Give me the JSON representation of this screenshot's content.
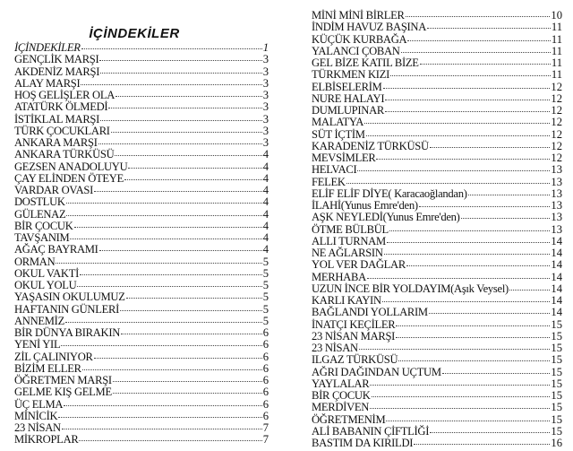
{
  "title": "İÇİNDEKİLER",
  "left_entries": [
    {
      "title": "İÇİNDEKİLER",
      "page": "1",
      "italic": true
    },
    {
      "title": "GENÇLİK MARŞI",
      "page": "3"
    },
    {
      "title": "AKDENİZ MARŞI",
      "page": "3"
    },
    {
      "title": "ALAY MARŞI",
      "page": "3"
    },
    {
      "title": "HOŞ GELİŞLER OLA",
      "page": "3"
    },
    {
      "title": "ATATÜRK ÖLMEDİ",
      "page": "3"
    },
    {
      "title": "İSTİKLAL MARŞI",
      "page": "3"
    },
    {
      "title": "TÜRK ÇOCUKLARI",
      "page": "3"
    },
    {
      "title": "ANKARA MARŞI",
      "page": "3"
    },
    {
      "title": "ANKARA TÜRKÜSÜ",
      "page": "4"
    },
    {
      "title": "GEZSEN ANADOLUYU",
      "page": "4"
    },
    {
      "title": "ÇAY ELİNDEN ÖTEYE",
      "page": "4"
    },
    {
      "title": "VARDAR OVASI",
      "page": "4"
    },
    {
      "title": "DOSTLUK",
      "page": "4"
    },
    {
      "title": "GÜLENAZ",
      "page": "4"
    },
    {
      "title": "BİR ÇOCUK",
      "page": "4"
    },
    {
      "title": "TAVŞANIM",
      "page": "4"
    },
    {
      "title": "AĞAÇ BAYRAMI",
      "page": "4"
    },
    {
      "title": "ORMAN",
      "page": "5"
    },
    {
      "title": "OKUL VAKTİ",
      "page": "5"
    },
    {
      "title": "OKUL YOLU",
      "page": "5"
    },
    {
      "title": "YAŞASIN OKULUMUZ",
      "page": "5"
    },
    {
      "title": "HAFTANIN GÜNLERİ",
      "page": "5"
    },
    {
      "title": "ANNEMİZ",
      "page": "5"
    },
    {
      "title": "BİR DÜNYA BIRAKIN",
      "page": "6"
    },
    {
      "title": "YENİ YIL",
      "page": "6"
    },
    {
      "title": "ZİL ÇALINIYOR",
      "page": "6"
    },
    {
      "title": "BİZİM ELLER",
      "page": "6"
    },
    {
      "title": "ÖĞRETMEN MARŞI",
      "page": "6"
    },
    {
      "title": "GELME KIŞ GELME",
      "page": "6"
    },
    {
      "title": "ÜÇ ELMA",
      "page": "6"
    },
    {
      "title": "MİNİCİK",
      "page": "6"
    },
    {
      "title": "23 NİSAN",
      "page": "7"
    },
    {
      "title": "MİKROPLAR",
      "page": "7"
    }
  ],
  "right_entries": [
    {
      "title": "MİNİ MİNİ BİRLER",
      "page": "10"
    },
    {
      "title": "İNDİM HAVUZ BAŞINA",
      "page": "11"
    },
    {
      "title": "KÜÇÜK KURBAĞA",
      "page": "11"
    },
    {
      "title": "YALANCI ÇOBAN",
      "page": "11"
    },
    {
      "title": "GEL BİZE KATIL BİZE",
      "page": "11"
    },
    {
      "title": "TÜRKMEN KIZI",
      "page": "11"
    },
    {
      "title": "ELBİSELERİM",
      "page": "12"
    },
    {
      "title": "NURE HALAYI",
      "page": "12"
    },
    {
      "title": "DUMLUPINAR",
      "page": "12"
    },
    {
      "title": "MALATYA",
      "page": "12"
    },
    {
      "title": "SÜT İÇTİM",
      "page": "12"
    },
    {
      "title": "KARADENİZ TÜRKÜSÜ",
      "page": "12"
    },
    {
      "title": "MEVSİMLER",
      "page": "12"
    },
    {
      "title": "HELVACI",
      "page": "13"
    },
    {
      "title": "FELEK",
      "page": "13"
    },
    {
      "title": "ELİF ELİF DİYE( Karacaoğlandan)",
      "page": "13"
    },
    {
      "title": "İLAHİ(Yunus Emre'den)",
      "page": "13"
    },
    {
      "title": "AŞK NEYLEDİ(Yunus Emre'den)",
      "page": "13"
    },
    {
      "title": "ÖTME BÜLBÜL",
      "page": "13"
    },
    {
      "title": "ALLI TURNAM",
      "page": "14"
    },
    {
      "title": "NE AĞLARSIN",
      "page": "14"
    },
    {
      "title": "YOL VER DAĞLAR",
      "page": "14"
    },
    {
      "title": "MERHABA",
      "page": "14"
    },
    {
      "title": "UZUN İNCE BİR YOLDAYIM(Aşık Veysel)",
      "page": "14"
    },
    {
      "title": "KARLI KAYIN",
      "page": "14"
    },
    {
      "title": "BAĞLANDI YOLLARIM",
      "page": "14"
    },
    {
      "title": "İNATÇI  KEÇİLER",
      "page": "15"
    },
    {
      "title": "23 NİSAN MARŞI",
      "page": "15"
    },
    {
      "title": "23 NİSAN",
      "page": "15"
    },
    {
      "title": "ILGAZ TÜRKÜSÜ",
      "page": "15"
    },
    {
      "title": "AĞRI DAĞINDAN UÇTUM",
      "page": "15"
    },
    {
      "title": "YAYLALAR",
      "page": "15"
    },
    {
      "title": "BİR ÇOCUK",
      "page": "15"
    },
    {
      "title": "MERDİVEN",
      "page": "15"
    },
    {
      "title": "ÖĞRETMENİM",
      "page": "15"
    },
    {
      "title": "ALİ BABANIN ÇİFTLİĞİ",
      "page": "15"
    },
    {
      "title": "BASTIM DA KIRILDI",
      "page": "16"
    }
  ]
}
